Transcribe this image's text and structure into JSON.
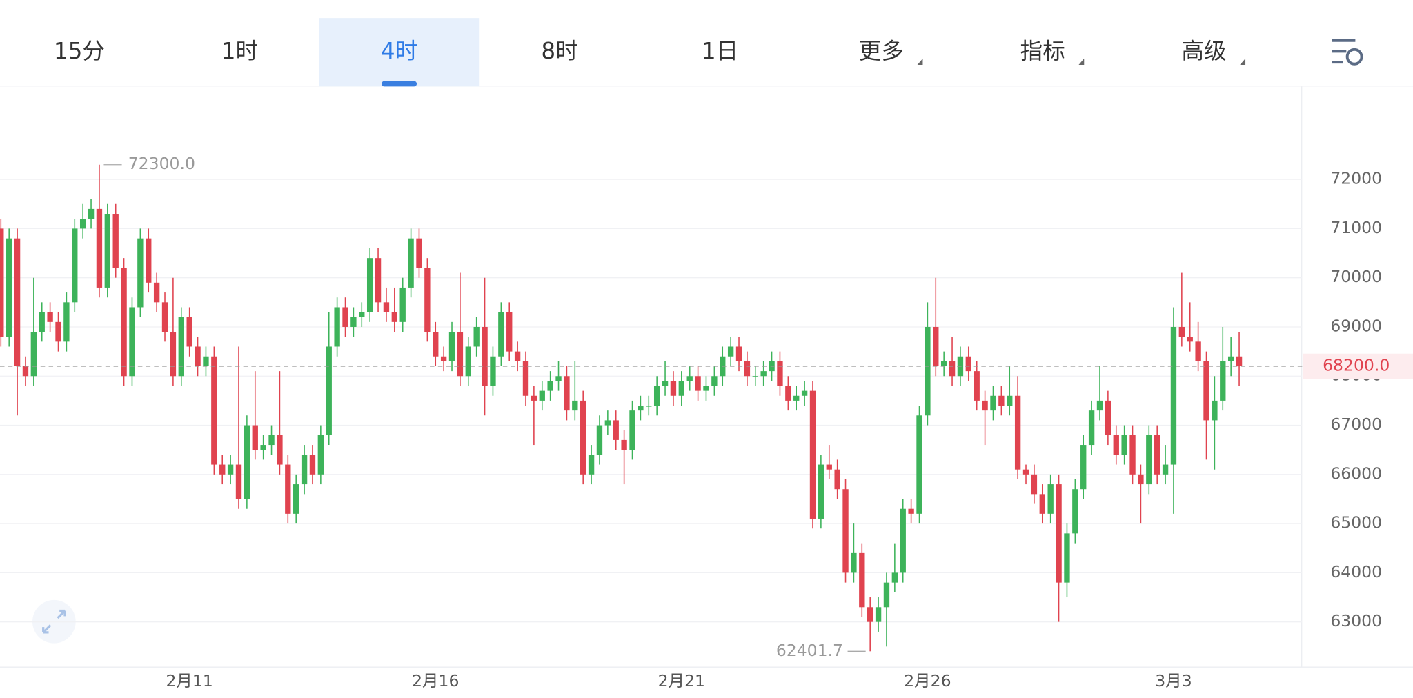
{
  "tabs": {
    "items": [
      "15分",
      "1时",
      "4时",
      "8时",
      "1日",
      "更多",
      "指标",
      "高级"
    ],
    "active": 2
  },
  "chart_data": {
    "type": "candlestick",
    "categories": [
      null,
      null,
      null,
      null,
      null,
      null,
      null,
      null,
      null,
      null,
      null,
      null,
      null,
      null,
      null,
      null,
      null,
      null,
      null,
      null,
      null,
      null,
      null,
      "2月11",
      null,
      null,
      null,
      null,
      null,
      null,
      null,
      null,
      null,
      null,
      null,
      null,
      null,
      null,
      null,
      null,
      null,
      null,
      null,
      null,
      null,
      null,
      null,
      null,
      null,
      null,
      null,
      null,
      null,
      "2月16",
      null,
      null,
      null,
      null,
      null,
      null,
      null,
      null,
      null,
      null,
      null,
      null,
      null,
      null,
      null,
      null,
      null,
      null,
      null,
      null,
      null,
      null,
      null,
      null,
      null,
      null,
      null,
      null,
      null,
      "2月21",
      null,
      null,
      null,
      null,
      null,
      null,
      null,
      null,
      null,
      null,
      null,
      null,
      null,
      null,
      null,
      null,
      null,
      null,
      null,
      null,
      null,
      null,
      null,
      null,
      null,
      null,
      null,
      null,
      null,
      "2月26",
      null,
      null,
      null,
      null,
      null,
      null,
      null,
      null,
      null,
      null,
      null,
      null,
      null,
      null,
      null,
      null,
      null,
      null,
      null,
      null,
      null,
      null,
      null,
      null,
      null,
      null,
      null,
      null,
      null,
      "3月3",
      null,
      null,
      null,
      null,
      null,
      null,
      null,
      null
    ],
    "open": [
      71000,
      68800,
      70800,
      68200,
      68000,
      68900,
      69300,
      69100,
      68700,
      69500,
      71000,
      71200,
      71400,
      69800,
      71300,
      70200,
      68000,
      69400,
      70800,
      69900,
      69500,
      68900,
      68000,
      69200,
      68600,
      68200,
      68400,
      66200,
      66000,
      66200,
      65500,
      67000,
      66500,
      66600,
      66800,
      66200,
      65200,
      65800,
      66400,
      66000,
      66800,
      68600,
      69400,
      69000,
      69200,
      69300,
      70400,
      69500,
      69300,
      69100,
      69800,
      70800,
      70200,
      68900,
      68400,
      68300,
      68900,
      68000,
      68600,
      69000,
      67800,
      68400,
      69300,
      68500,
      68300,
      67600,
      67500,
      67700,
      67900,
      68000,
      67300,
      67500,
      66000,
      66400,
      67000,
      67100,
      66700,
      66500,
      67300,
      67400,
      67400,
      67800,
      67900,
      67600,
      67900,
      68000,
      67700,
      67800,
      68000,
      68400,
      68600,
      68300,
      68000,
      68000,
      68100,
      68300,
      67800,
      67500,
      67600,
      67700,
      65100,
      66200,
      66100,
      65700,
      64000,
      64400,
      63300,
      63000,
      63300,
      63800,
      64000,
      65300,
      65200,
      67200,
      69000,
      68200,
      68300,
      68000,
      68400,
      68100,
      67500,
      67300,
      67600,
      67400,
      67600,
      66100,
      66000,
      65600,
      65200,
      65800,
      63800,
      64800,
      65700,
      66600,
      67300,
      67500,
      66800,
      66400,
      66800,
      66000,
      65800,
      66800,
      66000,
      66200,
      69000,
      68800,
      68700,
      68300,
      67100,
      67500,
      68300,
      68400
    ],
    "high": [
      71200,
      71000,
      71000,
      68400,
      70000,
      69500,
      69500,
      69300,
      69700,
      71200,
      71500,
      71600,
      72300,
      71500,
      71500,
      70400,
      69600,
      71000,
      71000,
      70100,
      69700,
      70000,
      69400,
      69400,
      68800,
      68600,
      68600,
      66400,
      66400,
      68600,
      67200,
      68100,
      66800,
      67000,
      68100,
      66400,
      66000,
      66600,
      66600,
      67000,
      69300,
      69600,
      69600,
      69400,
      69500,
      70600,
      70600,
      69800,
      69800,
      70000,
      71000,
      71000,
      70400,
      69100,
      68600,
      69100,
      70100,
      68800,
      69200,
      70000,
      68600,
      69500,
      69500,
      68700,
      68500,
      67800,
      67900,
      68100,
      68300,
      68200,
      68300,
      67700,
      66600,
      67200,
      67300,
      67300,
      66900,
      67500,
      67600,
      67600,
      68000,
      68300,
      68100,
      68100,
      68200,
      68200,
      68000,
      68200,
      68600,
      68800,
      68800,
      68500,
      68200,
      68300,
      68500,
      68500,
      68000,
      67800,
      67900,
      67900,
      66400,
      66600,
      66300,
      65900,
      65000,
      64600,
      63500,
      63500,
      64000,
      64600,
      65500,
      65500,
      67400,
      69500,
      70000,
      68500,
      68800,
      68600,
      68600,
      68300,
      67700,
      67800,
      67800,
      68200,
      68000,
      66200,
      66200,
      65800,
      66000,
      66000,
      65000,
      65900,
      66800,
      67500,
      68200,
      67700,
      67000,
      67000,
      67000,
      66200,
      67000,
      67000,
      66600,
      69400,
      70100,
      69500,
      69100,
      68500,
      68000,
      69000,
      68800,
      68900
    ],
    "low": [
      68600,
      68600,
      67200,
      67800,
      67800,
      68700,
      68900,
      68500,
      68500,
      69300,
      70800,
      71000,
      69600,
      69600,
      70000,
      67800,
      67800,
      69200,
      69700,
      69300,
      68700,
      67800,
      67800,
      68400,
      68000,
      68000,
      66000,
      65800,
      65800,
      65300,
      65300,
      66300,
      66300,
      66400,
      66000,
      65000,
      65000,
      65600,
      65800,
      65800,
      66600,
      68400,
      68800,
      68800,
      69000,
      69100,
      69300,
      69100,
      68900,
      68900,
      69600,
      70000,
      68700,
      68200,
      68100,
      68100,
      67800,
      67800,
      68400,
      67200,
      67600,
      68200,
      68300,
      68100,
      67400,
      66600,
      67300,
      67500,
      67700,
      67100,
      67100,
      65800,
      65800,
      66200,
      66800,
      66500,
      65800,
      66300,
      67100,
      67200,
      67200,
      67600,
      67400,
      67400,
      67700,
      67500,
      67500,
      67600,
      67800,
      68200,
      68100,
      67800,
      67800,
      67800,
      67900,
      67600,
      67300,
      67300,
      67400,
      64900,
      64900,
      65900,
      65500,
      63800,
      63800,
      63100,
      62401.7,
      62800,
      62500,
      63600,
      63800,
      65000,
      65000,
      67000,
      68000,
      68000,
      67800,
      67800,
      67900,
      67300,
      66600,
      67100,
      67200,
      67200,
      65900,
      65800,
      65400,
      65000,
      65000,
      63000,
      63500,
      64600,
      65500,
      66400,
      67100,
      66600,
      66200,
      66200,
      65800,
      65000,
      65600,
      65800,
      65800,
      65200,
      68600,
      68500,
      68100,
      66300,
      66100,
      67300,
      68000,
      67800
    ],
    "close": [
      68800,
      70800,
      68200,
      68000,
      68900,
      69300,
      69100,
      68700,
      69500,
      71000,
      71200,
      71400,
      69800,
      71300,
      70200,
      68000,
      69400,
      70800,
      69900,
      69500,
      68900,
      68000,
      69200,
      68600,
      68200,
      68400,
      66200,
      66000,
      66200,
      65500,
      67000,
      66500,
      66600,
      66800,
      66200,
      65200,
      65800,
      66400,
      66000,
      66800,
      68600,
      69400,
      69000,
      69200,
      69300,
      70400,
      69500,
      69300,
      69100,
      69800,
      70800,
      70200,
      68900,
      68400,
      68300,
      68900,
      68000,
      68600,
      69000,
      67800,
      68400,
      69300,
      68500,
      68300,
      67600,
      67500,
      67700,
      67900,
      68000,
      67300,
      67500,
      66000,
      66400,
      67000,
      67100,
      66700,
      66500,
      67300,
      67400,
      67400,
      67800,
      67900,
      67600,
      67900,
      68000,
      67700,
      67800,
      68000,
      68400,
      68600,
      68300,
      68000,
      68000,
      68100,
      68300,
      67800,
      67500,
      67600,
      67700,
      65100,
      66200,
      66100,
      65700,
      64000,
      64400,
      63300,
      63000,
      63300,
      63800,
      64000,
      65300,
      65200,
      67200,
      69000,
      68200,
      68300,
      68000,
      68400,
      68100,
      67500,
      67300,
      67600,
      67400,
      67600,
      66100,
      66000,
      65600,
      65200,
      65800,
      63800,
      64800,
      65700,
      66600,
      67300,
      67500,
      66800,
      66400,
      66800,
      66000,
      65800,
      66800,
      66000,
      66200,
      69000,
      68800,
      68700,
      68300,
      67100,
      67500,
      68300,
      68400,
      68200
    ],
    "up_color": "#3db35a",
    "down_color": "#e0434f",
    "ylim": [
      62090,
      73890
    ],
    "yticks": [
      63000,
      64000,
      65000,
      66000,
      67000,
      68000,
      69000,
      70000,
      71000,
      72000
    ],
    "grid": true,
    "annotations": [
      {
        "value": 72300,
        "label": "72300.0"
      },
      {
        "value": 62401.7,
        "label": "62401.7"
      }
    ],
    "last_price": {
      "value": 68200,
      "label": "68200.0"
    }
  }
}
